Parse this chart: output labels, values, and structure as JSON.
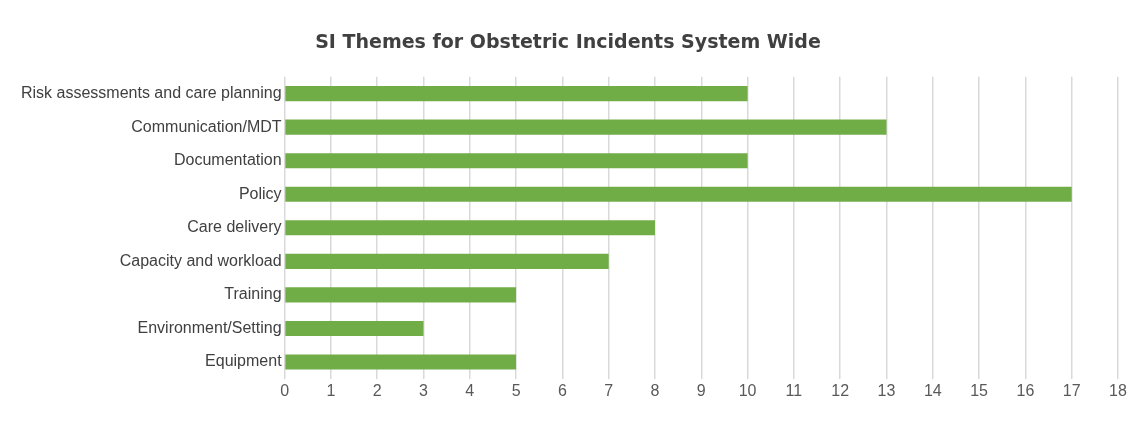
{
  "chart_data": {
    "type": "bar",
    "orientation": "horizontal",
    "title": "SI Themes for Obstetric Incidents System Wide",
    "categories": [
      "Risk assessments and care planning",
      "Communication/MDT",
      "Documentation",
      "Policy",
      "Care delivery",
      "Capacity and workload",
      "Training",
      "Environment/Setting",
      "Equipment"
    ],
    "values": [
      10,
      13,
      10,
      17,
      8,
      7,
      5,
      3,
      5
    ],
    "color": "#70ad47",
    "xlim": [
      0,
      18
    ],
    "xticks": [
      0,
      1,
      2,
      3,
      4,
      5,
      6,
      7,
      8,
      9,
      10,
      11,
      12,
      13,
      14,
      15,
      16,
      17,
      18
    ],
    "grid": "x",
    "legend": false
  }
}
